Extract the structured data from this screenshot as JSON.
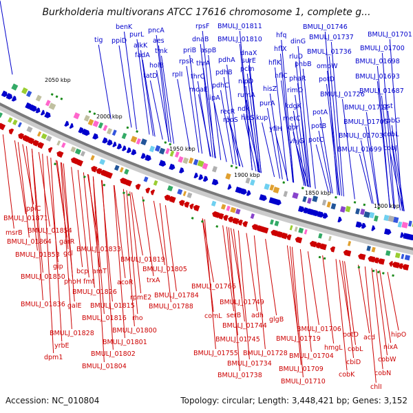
{
  "title": "Burkholderia multivorans ATCC 17616 chromosome 1, complete g...",
  "footer": {
    "accession": "Accession: NC_010804",
    "topology": "Topology: circular; Length: 3,448,421 bp; Genes: 3,152"
  },
  "colors": {
    "forward": "#0000cc",
    "reverse": "#cc0000",
    "backbone": "#888888",
    "tick": "#1a8a1a"
  },
  "kbp_ticks": [
    "2050 kbp",
    "2000 kbp",
    "1950 kbp",
    "1900 kbp",
    "1850 kbp",
    "1800 kbp"
  ],
  "forward_labels": [
    "benK",
    "tig",
    "purL",
    "pncA",
    "ppiD",
    "aes",
    "alkK",
    "tmk",
    "fadA",
    "holB",
    "tatD",
    "rpsF",
    "dnaB",
    "priB",
    "aspB",
    "rpsR",
    "thrA",
    "rplI",
    "thrC",
    "moaE",
    "BMULJ_01811",
    "BMULJ_01810",
    "pdhA",
    "pdhB",
    "pdhC",
    "lipA",
    "dnaX",
    "surE",
    "pcm",
    "nlpD",
    "rumA",
    "recR",
    "ndk",
    "rpoS",
    "hisS",
    "kup",
    "hfq",
    "hflX",
    "rluD",
    "hflK",
    "hflC",
    "hisZ",
    "purA",
    "metC",
    "qor",
    "yfiH",
    "dinG",
    "phbB",
    "phaR",
    "rimO",
    "kdgK",
    "vhjG",
    "BMULJ_01746",
    "BMULJ_01737",
    "BMULJ_01736",
    "ompW",
    "potD",
    "BMULJ_01726",
    "potA",
    "potB",
    "potC",
    "BMULJ_01701",
    "BMULJ_01700",
    "BMULJ_01698",
    "BMULJ_01693",
    "BMULJ_01687",
    "BMULJ_01711",
    "gst",
    "BMULJ_01705",
    "cobG",
    "BMULJ_01703",
    "cobL",
    "BMULJ_01699",
    "cobJ"
  ],
  "reverse_labels": [
    "ppiC",
    "BMULJ_01871",
    "msrB",
    "BMULJ_01854",
    "BMULJ_01864",
    "garR",
    "BMULJ_01853",
    "gcl",
    "gip",
    "BMULJ_01850",
    "BMULJ_01833",
    "bcp",
    "amT",
    "phoH",
    "fmt",
    "BMULJ_01819",
    "BMULJ_01805",
    "BMULJ_01826",
    "acoR",
    "trxA",
    "BMULJ_01836",
    "galE",
    "BMULJ_01815",
    "rpmE2",
    "BMULJ_01816",
    "rho",
    "BMULJ_01788",
    "BMULJ_01784",
    "BMULJ_01828",
    "yrbE",
    "BMULJ_01800",
    "BMULJ_01801",
    "dpm1",
    "BMULJ_01802",
    "BMULJ_01804",
    "BMULJ_01766",
    "comL",
    "BMULJ_01749",
    "serB",
    "adh",
    "BMULJ_01744",
    "BMULJ_01745",
    "glgB",
    "BMULJ_01755",
    "BMULJ_01728",
    "BMULJ_01734",
    "BMULJ_01738",
    "BMULJ_01706",
    "BMULJ_01719",
    "BMULJ_01704",
    "BMULJ_01709",
    "BMULJ_01710",
    "hmgL",
    "potD",
    "cobL",
    "acd",
    "hipO",
    "cbiD",
    "nixA",
    "cobK",
    "cobW",
    "cobN",
    "chlI"
  ]
}
